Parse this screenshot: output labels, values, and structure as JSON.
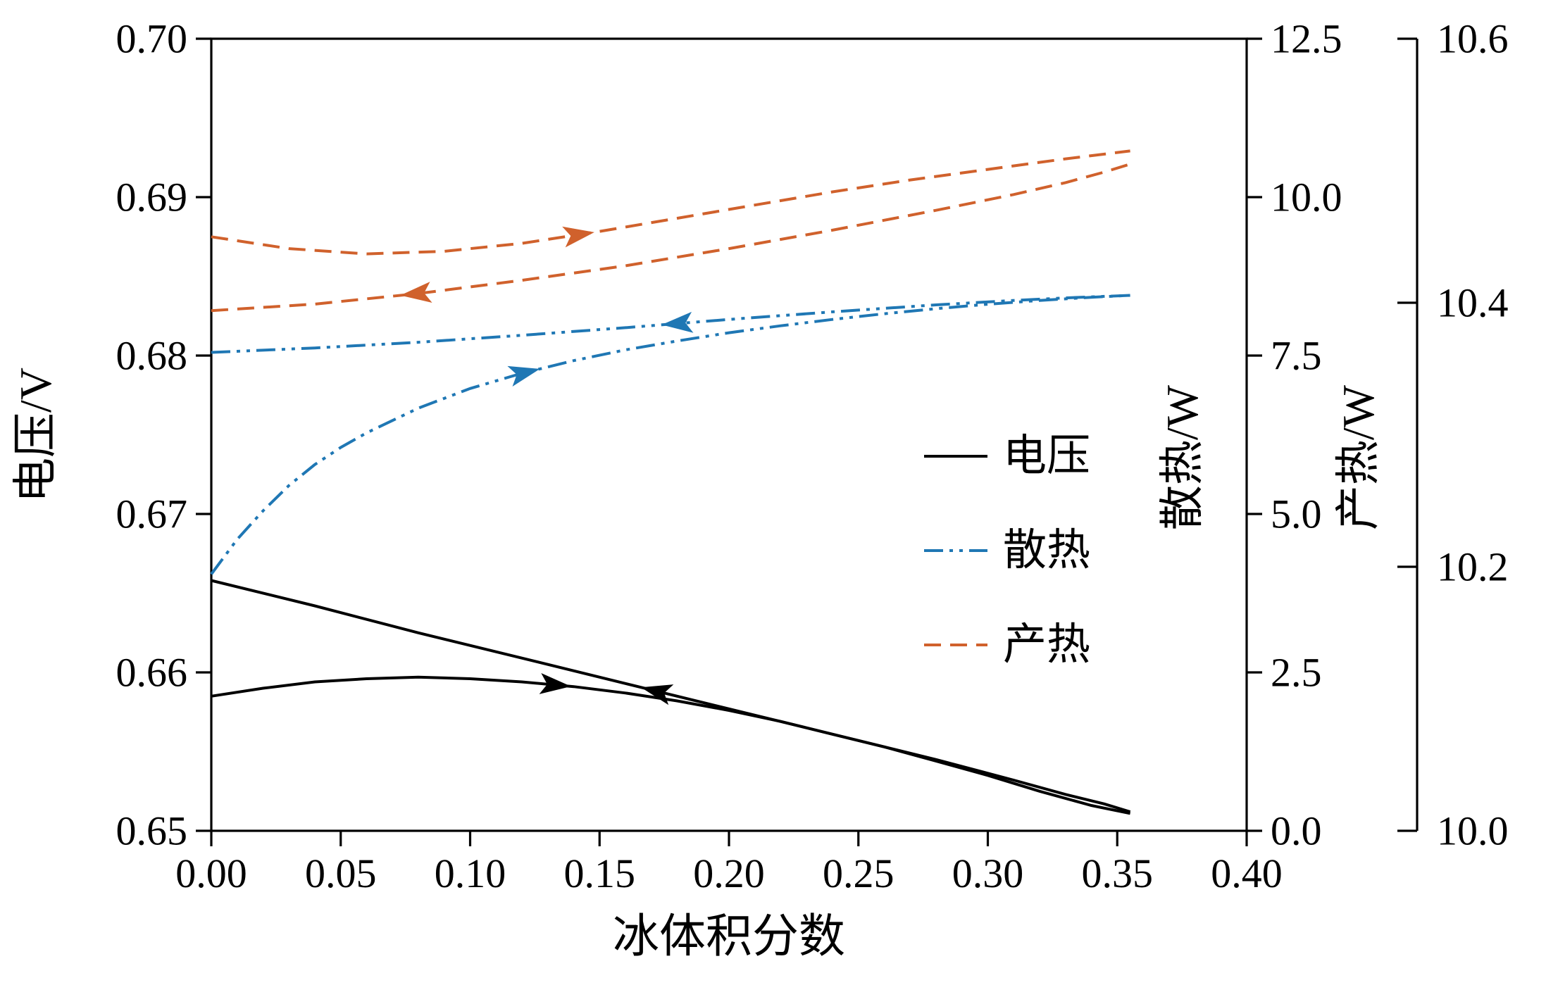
{
  "chart_data": {
    "type": "line",
    "title": "",
    "xlabel": "冰体积分数",
    "x_axis": {
      "range": [
        0.0,
        0.4
      ],
      "tick_values": [
        0.0,
        0.05,
        0.1,
        0.15,
        0.2,
        0.25,
        0.3,
        0.35,
        0.4
      ],
      "ticks": [
        "0.00",
        "0.05",
        "0.10",
        "0.15",
        "0.20",
        "0.25",
        "0.30",
        "0.35",
        "0.40"
      ]
    },
    "y_axes": [
      {
        "id": "voltage",
        "label": "电压/V",
        "side": "left",
        "range": [
          0.65,
          0.7
        ],
        "tick_values": [
          0.65,
          0.66,
          0.67,
          0.68,
          0.69,
          0.7
        ],
        "ticks": [
          "0.65",
          "0.66",
          "0.67",
          "0.68",
          "0.69",
          "0.70"
        ]
      },
      {
        "id": "heat_dissipation",
        "label": "散热/W",
        "side": "right_inner",
        "range": [
          0.0,
          12.5
        ],
        "tick_values": [
          0.0,
          2.5,
          5.0,
          7.5,
          10.0,
          12.5
        ],
        "ticks": [
          "0.0",
          "2.5",
          "5.0",
          "7.5",
          "10.0",
          "12.5"
        ]
      },
      {
        "id": "heat_generation",
        "label": "产热/W",
        "side": "right_outer",
        "range": [
          10.0,
          10.6
        ],
        "tick_values": [
          10.0,
          10.2,
          10.4,
          10.6
        ],
        "ticks": [
          "10.0",
          "10.2",
          "10.4",
          "10.6"
        ]
      }
    ],
    "legend": {
      "position": "center-right",
      "entries": [
        "电压",
        "散热",
        "产热"
      ]
    },
    "series": [
      {
        "name": "电压",
        "axis": "voltage",
        "color": "#000000",
        "line_style": "solid",
        "branches": [
          {
            "direction": "forward",
            "arrow": {
              "x": 0.139,
              "dir": "right"
            },
            "points": [
              [
                0,
                0.6585
              ],
              [
                0.02,
                0.659
              ],
              [
                0.04,
                0.6594
              ],
              [
                0.06,
                0.6596
              ],
              [
                0.08,
                0.6597
              ],
              [
                0.1,
                0.6596
              ],
              [
                0.12,
                0.6594
              ],
              [
                0.14,
                0.6591
              ],
              [
                0.16,
                0.6587
              ],
              [
                0.18,
                0.6582
              ],
              [
                0.2,
                0.6576
              ],
              [
                0.22,
                0.6569
              ],
              [
                0.24,
                0.6561
              ],
              [
                0.26,
                0.6553
              ],
              [
                0.28,
                0.6544
              ],
              [
                0.3,
                0.6535
              ],
              [
                0.32,
                0.6525
              ],
              [
                0.34,
                0.6516
              ],
              [
                0.355,
                0.6511
              ]
            ]
          },
          {
            "direction": "backward",
            "arrow": {
              "x": 0.166,
              "dir": "left"
            },
            "points": [
              [
                0,
                0.6658
              ],
              [
                0.04,
                0.6642
              ],
              [
                0.08,
                0.6625
              ],
              [
                0.12,
                0.6609
              ],
              [
                0.16,
                0.6593
              ],
              [
                0.2,
                0.6577
              ],
              [
                0.24,
                0.6561
              ],
              [
                0.28,
                0.6545
              ],
              [
                0.31,
                0.6532
              ],
              [
                0.33,
                0.6523
              ],
              [
                0.345,
                0.6517
              ],
              [
                0.355,
                0.6512
              ]
            ]
          }
        ]
      },
      {
        "name": "散热",
        "axis": "heat_dissipation",
        "color": "#1f77b4",
        "line_style": "dash-dot-dot",
        "branches": [
          {
            "direction": "forward",
            "arrow": {
              "x": 0.127,
              "dir": "right"
            },
            "points": [
              [
                0,
                4.05
              ],
              [
                0.01,
                4.6
              ],
              [
                0.02,
                5.05
              ],
              [
                0.03,
                5.45
              ],
              [
                0.04,
                5.78
              ],
              [
                0.05,
                6.05
              ],
              [
                0.06,
                6.28
              ],
              [
                0.08,
                6.67
              ],
              [
                0.1,
                6.98
              ],
              [
                0.12,
                7.22
              ],
              [
                0.14,
                7.42
              ],
              [
                0.16,
                7.59
              ],
              [
                0.18,
                7.73
              ],
              [
                0.2,
                7.86
              ],
              [
                0.22,
                7.97
              ],
              [
                0.24,
                8.07
              ],
              [
                0.26,
                8.16
              ],
              [
                0.28,
                8.24
              ],
              [
                0.3,
                8.31
              ],
              [
                0.32,
                8.37
              ],
              [
                0.34,
                8.42
              ],
              [
                0.355,
                8.45
              ]
            ]
          },
          {
            "direction": "backward",
            "arrow": {
              "x": 0.174,
              "dir": "left"
            },
            "points": [
              [
                0,
                7.55
              ],
              [
                0.04,
                7.62
              ],
              [
                0.08,
                7.71
              ],
              [
                0.12,
                7.82
              ],
              [
                0.16,
                7.94
              ],
              [
                0.2,
                8.07
              ],
              [
                0.24,
                8.19
              ],
              [
                0.28,
                8.3
              ],
              [
                0.31,
                8.37
              ],
              [
                0.33,
                8.41
              ],
              [
                0.355,
                8.45
              ]
            ]
          }
        ]
      },
      {
        "name": "产热",
        "axis": "heat_generation",
        "color": "#d0612c",
        "line_style": "dashed",
        "branches": [
          {
            "direction": "forward",
            "arrow": {
              "x": 0.148,
              "dir": "right"
            },
            "points": [
              [
                0,
                10.45
              ],
              [
                0.03,
                10.441
              ],
              [
                0.06,
                10.437
              ],
              [
                0.09,
                10.439
              ],
              [
                0.12,
                10.445
              ],
              [
                0.15,
                10.454
              ],
              [
                0.18,
                10.464
              ],
              [
                0.21,
                10.474
              ],
              [
                0.24,
                10.484
              ],
              [
                0.27,
                10.493
              ],
              [
                0.3,
                10.501
              ],
              [
                0.33,
                10.509
              ],
              [
                0.355,
                10.515
              ]
            ]
          },
          {
            "direction": "backward",
            "arrow": {
              "x": 0.073,
              "dir": "left"
            },
            "points": [
              [
                0,
                10.394
              ],
              [
                0.04,
                10.399
              ],
              [
                0.08,
                10.407
              ],
              [
                0.12,
                10.417
              ],
              [
                0.16,
                10.428
              ],
              [
                0.2,
                10.441
              ],
              [
                0.24,
                10.455
              ],
              [
                0.28,
                10.47
              ],
              [
                0.31,
                10.482
              ],
              [
                0.33,
                10.491
              ],
              [
                0.345,
                10.499
              ],
              [
                0.355,
                10.505
              ]
            ]
          }
        ]
      }
    ]
  }
}
